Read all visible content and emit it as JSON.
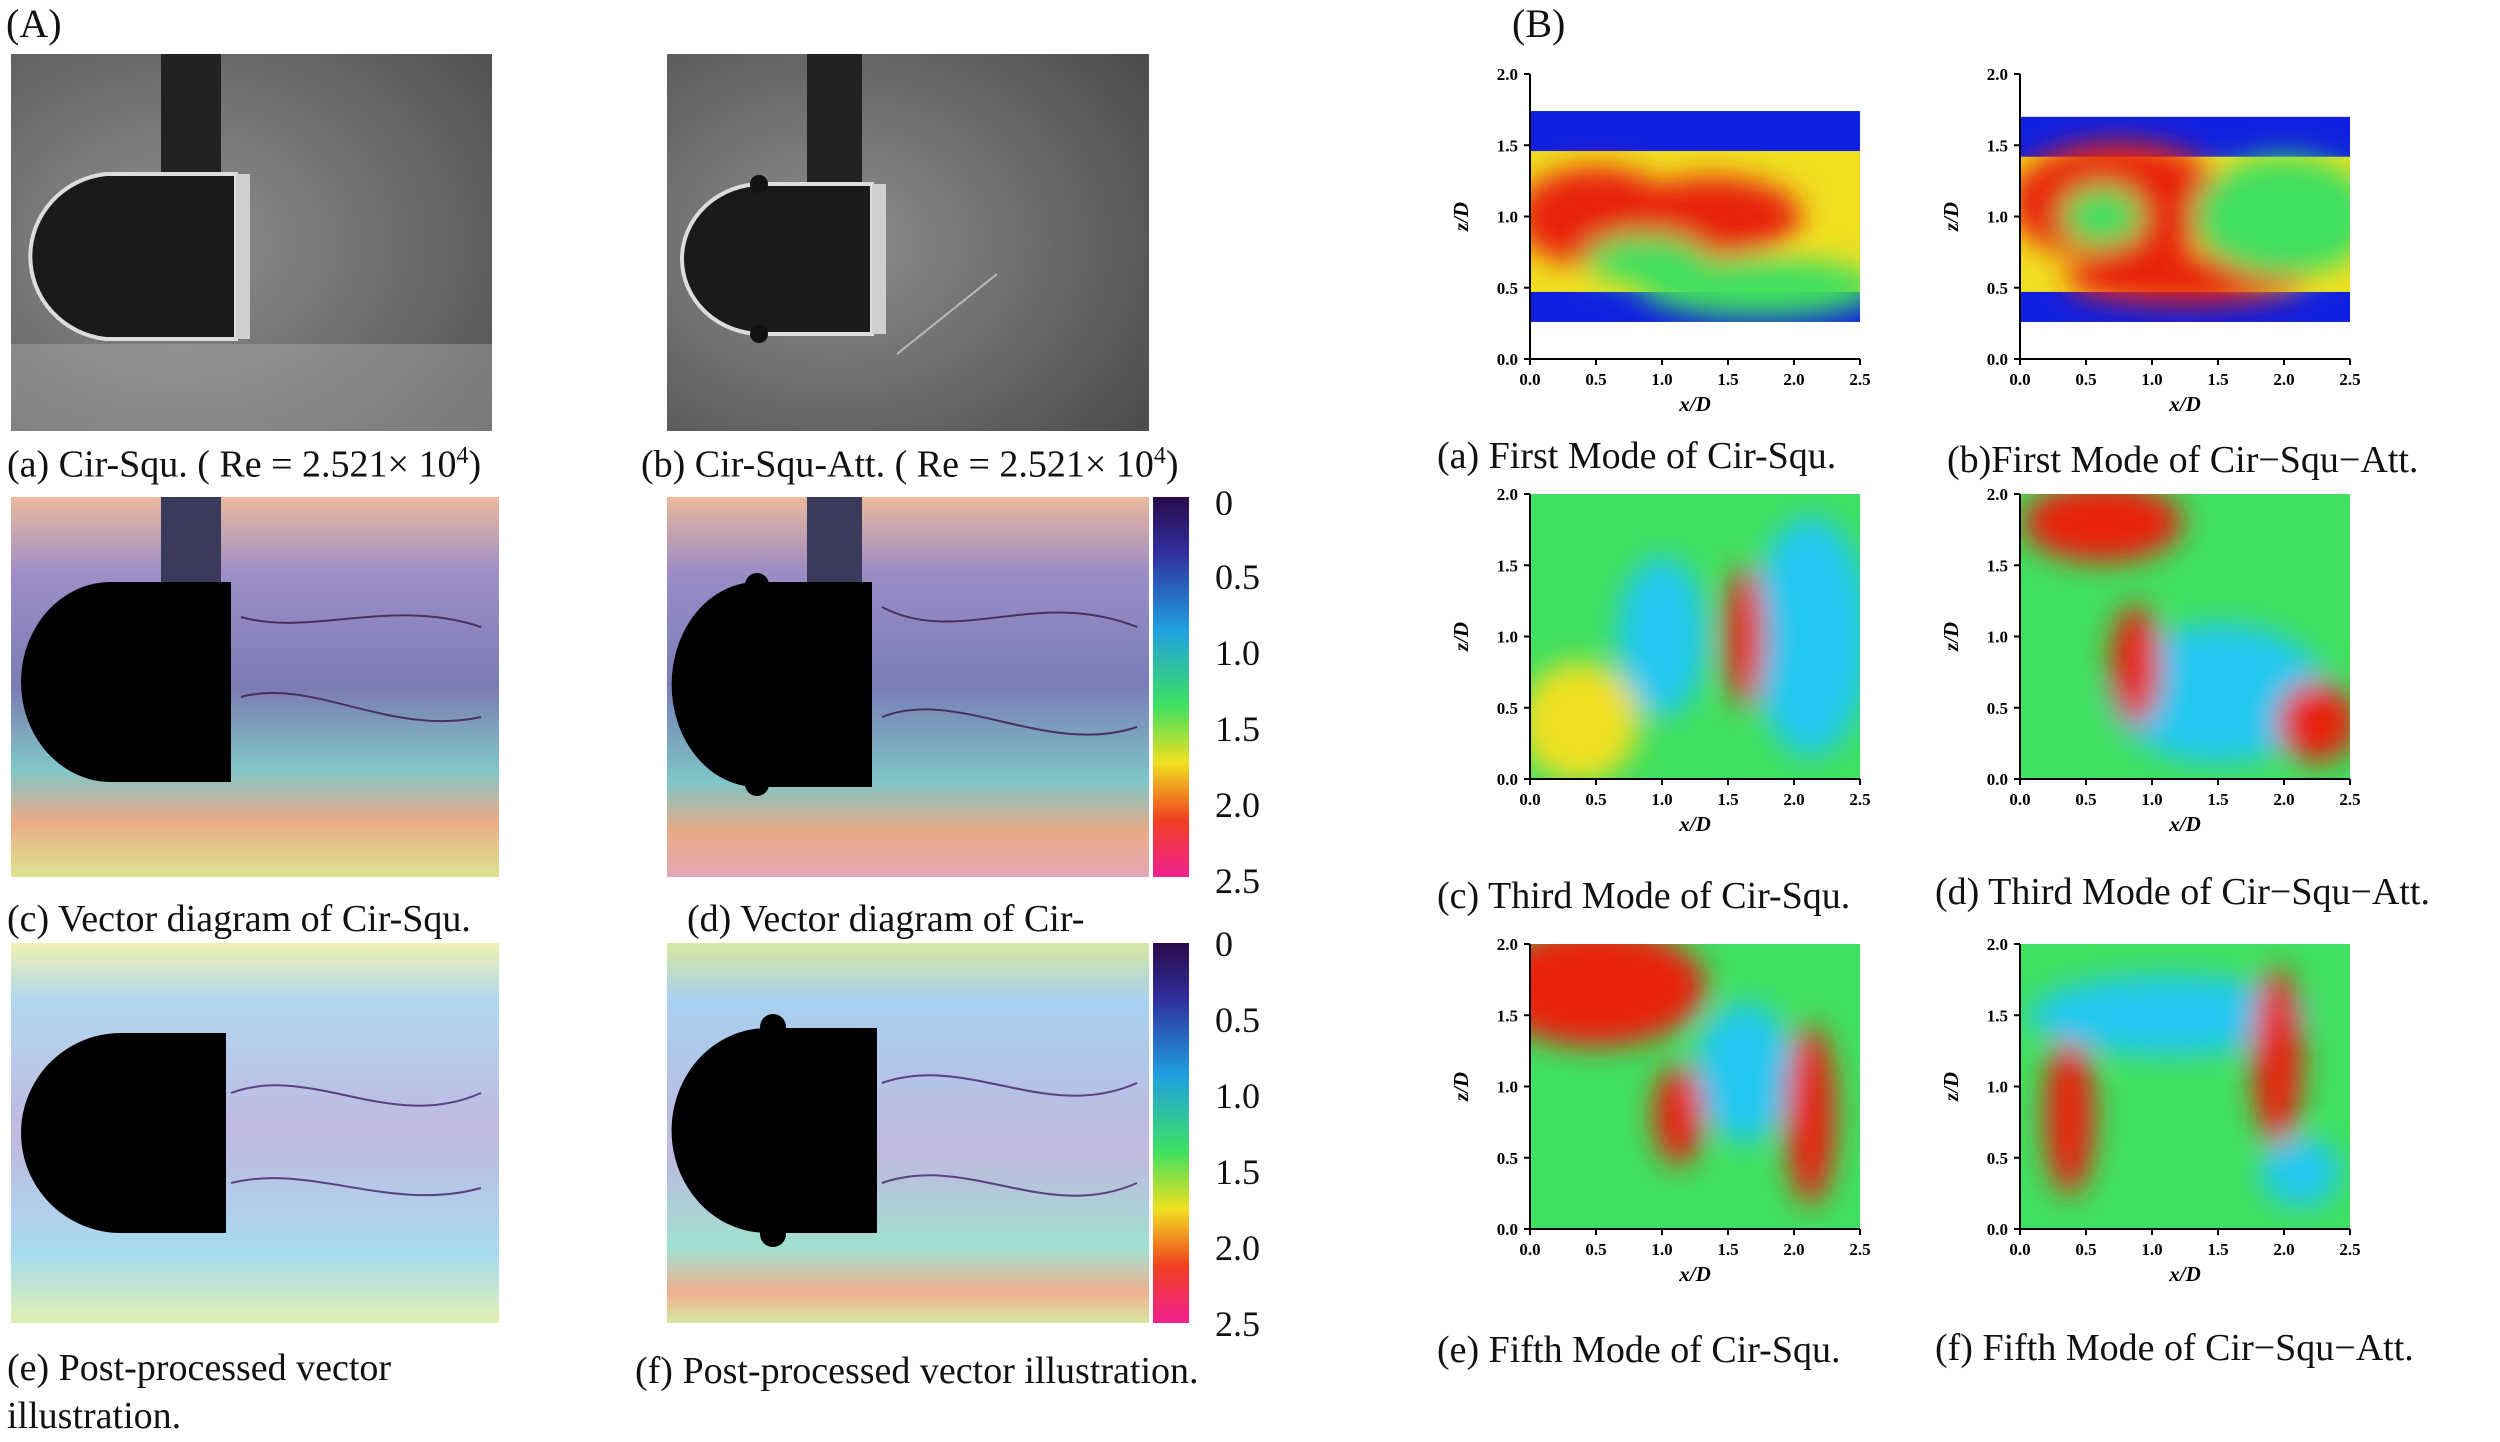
{
  "panel_a": {
    "label": "(A)",
    "captions": {
      "a": "(a) Cir-Squ. ( Re = 2.521× 10",
      "a_exp": "4",
      "a_close": ")",
      "b": "(b) Cir-Squ-Att. ( Re = 2.521× 10",
      "b_exp": "4",
      "b_close": ")",
      "c": "(c) Vector diagram of Cir-Squ.",
      "d": "(d) Vector diagram of Cir-",
      "e_line1": "(e) Post-processed vector",
      "e_line2": "illustration.",
      "f": "(f) Post-processed vector illustration."
    },
    "colorbar_ticks": [
      "0",
      "0.5",
      "1.0",
      "1.5",
      "2.0",
      "2.5"
    ]
  },
  "panel_b": {
    "label": "(B)",
    "x_axis_label": "x/D",
    "y_axis_label": "z/D",
    "x_ticks": [
      "0.0",
      "0.5",
      "1.0",
      "1.5",
      "2.0",
      "2.5"
    ],
    "y_ticks": [
      "0.0",
      "0.5",
      "1.0",
      "1.5",
      "2.0"
    ],
    "captions": {
      "a": "(a) First Mode of Cir-Squ.",
      "b": "(b)First Mode of Cir−Squ−Att.",
      "c": "(c)  Third Mode of Cir-Squ.",
      "d": "(d) Third Mode of Cir−Squ−Att.",
      "e": "(e)  Fifth Mode of Cir-Squ.",
      "f": "(f) Fifth Mode of Cir−Squ−Att."
    }
  },
  "colors": {
    "jet_blue": "#1020e0",
    "jet_cyan": "#20c8f0",
    "jet_green": "#40e060",
    "jet_yellow": "#f0e020",
    "jet_red": "#e82010",
    "cbar_top": "#2a0a4a",
    "cbar_bottom": "#f02090"
  }
}
